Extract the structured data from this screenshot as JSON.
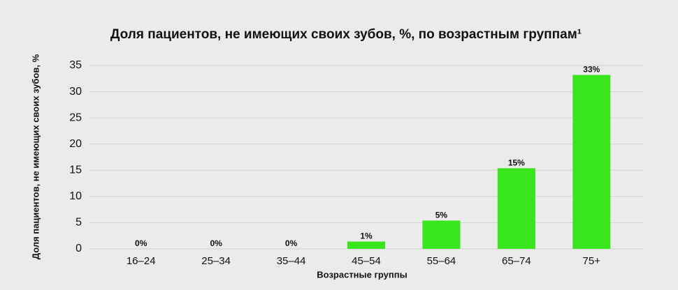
{
  "chart_data": {
    "type": "bar",
    "title": "Доля пациентов, не имеющих своих зубов, %, по возрастным группам¹",
    "x_label": "Возрастные группы",
    "y_label": "Доля пациентов, не имеющих своих зубов, %",
    "categories": [
      "16–24",
      "25–34",
      "35–44",
      "45–54",
      "55–64",
      "65–74",
      "75+"
    ],
    "values": [
      0,
      0,
      0,
      1.4,
      5.4,
      15.4,
      33.2
    ],
    "value_labels": [
      "0%",
      "0%",
      "0%",
      "1%",
      "5%",
      "15%",
      "33%"
    ],
    "color": "#39e61e",
    "ylim": [
      0,
      35
    ],
    "yticks": [
      0,
      5,
      10,
      15,
      20,
      25,
      30,
      35
    ],
    "grid": true
  }
}
